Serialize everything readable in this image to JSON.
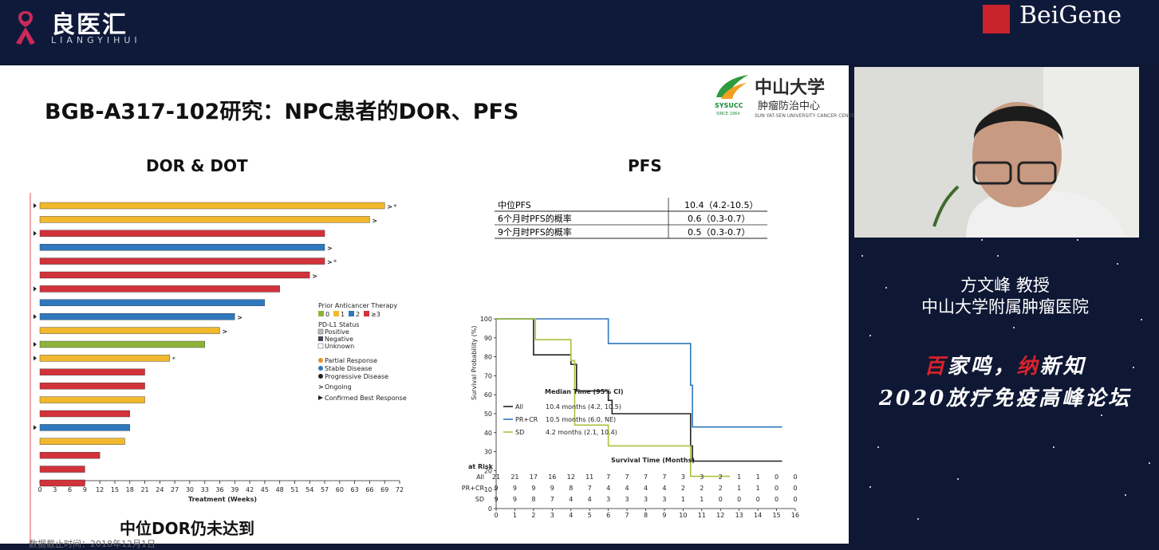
{
  "brand": {
    "cn": "良医汇",
    "en": "LIANGYIHUI",
    "partner": "BeiGene"
  },
  "slide": {
    "title": "BGB-A317-102研究：NPC患者的DOR、PFS",
    "institution": {
      "name_cn": "中山大学",
      "sub_cn": "肿瘤防治中心",
      "name_en": "SUN YAT-SEN UNIVERSITY CANCER CENTER",
      "abbr": "SYSUCC",
      "since": "SINCE 1964"
    },
    "left_heading": "DOR & DOT",
    "right_heading": "PFS",
    "footnote": "中位DOR仍未达到",
    "footnote_small": "数据截止时间：2018年12月1日"
  },
  "pfs_table": {
    "rows": [
      {
        "label": "中位PFS",
        "value": "10.4（4.2-10.5）"
      },
      {
        "label": "6个月时PFS的概率",
        "value": "0.6（0.3-0.7）"
      },
      {
        "label": "9个月时PFS的概率",
        "value": "0.5（0.3-0.7）"
      }
    ]
  },
  "legend_dor": {
    "therapy_title": "Prior Anticancer Therapy",
    "therapy_items": [
      "0",
      "1",
      "2",
      "≥3"
    ],
    "therapy_colors": [
      "#8fb33a",
      "#f2b82e",
      "#2f78bd",
      "#d2323a"
    ],
    "pdl1_title": "PD-L1 Status",
    "pdl1_items": [
      "Positive",
      "Negative",
      "Unknown"
    ],
    "response_items": [
      "Partial Response",
      "Stable Disease",
      "Progressive Disease"
    ],
    "response_colors": [
      "#e8902a",
      "#2f78bd",
      "#222222"
    ],
    "ongoing": "Ongoing",
    "confirmed": "Confirmed Best Response"
  },
  "speaker": {
    "name": "方文峰  教授",
    "affiliation": "中山大学附属肿瘤医院"
  },
  "slogan": {
    "line1_a": "百",
    "line1_b": "家鸣，",
    "line1_c": "纳",
    "line1_d": "新知",
    "line2": "2020放疗免疫高峰论坛"
  },
  "chart_data": [
    {
      "type": "bar",
      "title": "DOR & DOT",
      "xlabel": "Treatment (Weeks)",
      "orientation": "horizontal",
      "xlim": [
        0,
        72
      ],
      "xticks": [
        0,
        3,
        6,
        9,
        12,
        15,
        18,
        21,
        24,
        27,
        30,
        33,
        36,
        39,
        42,
        45,
        48,
        51,
        54,
        57,
        60,
        63,
        66,
        69,
        72
      ],
      "bars": [
        {
          "end": 69,
          "therapy": 1,
          "ongoing": true,
          "star": true,
          "arrow": true
        },
        {
          "end": 66,
          "therapy": 1,
          "ongoing": true,
          "arrow": false
        },
        {
          "end": 57,
          "therapy": 3,
          "ongoing": false,
          "arrow": true
        },
        {
          "end": 57,
          "therapy": 2,
          "ongoing": true,
          "arrow": false
        },
        {
          "end": 57,
          "therapy": 3,
          "ongoing": true,
          "star": true,
          "arrow": false
        },
        {
          "end": 54,
          "therapy": 3,
          "ongoing": true,
          "arrow": false
        },
        {
          "end": 48,
          "therapy": 3,
          "ongoing": false,
          "arrow": true
        },
        {
          "end": 45,
          "therapy": 2,
          "ongoing": false,
          "arrow": false
        },
        {
          "end": 39,
          "therapy": 2,
          "ongoing": true,
          "arrow": true
        },
        {
          "end": 36,
          "therapy": 1,
          "ongoing": true,
          "arrow": false
        },
        {
          "end": 33,
          "therapy": 0,
          "ongoing": false,
          "arrow": true
        },
        {
          "end": 26,
          "therapy": 1,
          "ongoing": false,
          "star": true,
          "arrow": true
        },
        {
          "end": 21,
          "therapy": 3,
          "ongoing": false,
          "arrow": false
        },
        {
          "end": 21,
          "therapy": 3,
          "ongoing": false,
          "arrow": false
        },
        {
          "end": 21,
          "therapy": 1,
          "ongoing": false,
          "arrow": false
        },
        {
          "end": 18,
          "therapy": 3,
          "ongoing": false,
          "arrow": false
        },
        {
          "end": 18,
          "therapy": 2,
          "ongoing": false,
          "arrow": true
        },
        {
          "end": 17,
          "therapy": 1,
          "ongoing": false,
          "arrow": false
        },
        {
          "end": 12,
          "therapy": 3,
          "ongoing": false,
          "arrow": false
        },
        {
          "end": 9,
          "therapy": 3,
          "ongoing": false,
          "arrow": false
        },
        {
          "end": 9,
          "therapy": 3,
          "ongoing": false,
          "arrow": false
        }
      ]
    },
    {
      "type": "line",
      "title": "PFS",
      "xlabel": "Survival Time (Months)",
      "ylabel": "Survival Probability (%)",
      "xlim": [
        0,
        16
      ],
      "ylim": [
        0,
        100
      ],
      "xticks": [
        0,
        1,
        2,
        3,
        4,
        5,
        6,
        7,
        8,
        9,
        10,
        11,
        12,
        13,
        14,
        15,
        16
      ],
      "yticks": [
        0,
        10,
        20,
        30,
        40,
        50,
        60,
        70,
        80,
        90,
        100
      ],
      "legend_title": "Median Time (95% CI)",
      "series": [
        {
          "name": "All",
          "median": "10.4 months (4.2, 10.5)",
          "color": "#222222",
          "steps": [
            [
              0,
              100
            ],
            [
              2,
              100
            ],
            [
              2,
              81
            ],
            [
              4,
              81
            ],
            [
              4,
              76
            ],
            [
              4.3,
              76
            ],
            [
              4.3,
              62
            ],
            [
              6,
              62
            ],
            [
              6,
              57
            ],
            [
              6.2,
              57
            ],
            [
              6.2,
              50
            ],
            [
              10.4,
              50
            ],
            [
              10.4,
              33
            ],
            [
              10.5,
              33
            ],
            [
              10.5,
              25
            ],
            [
              15.3,
              25
            ]
          ]
        },
        {
          "name": "PR+CR",
          "median": "10.5 months (6.0, NE)",
          "color": "#2f78bd",
          "steps": [
            [
              0,
              100
            ],
            [
              6,
              100
            ],
            [
              6,
              87
            ],
            [
              10.4,
              87
            ],
            [
              10.4,
              65
            ],
            [
              10.5,
              65
            ],
            [
              10.5,
              43
            ],
            [
              15.3,
              43
            ]
          ]
        },
        {
          "name": "SD",
          "median": "4.2 months (2.1, 10.4)",
          "color": "#a9c23d",
          "steps": [
            [
              0,
              100
            ],
            [
              2.1,
              100
            ],
            [
              2.1,
              89
            ],
            [
              4,
              89
            ],
            [
              4,
              78
            ],
            [
              4.2,
              78
            ],
            [
              4.2,
              44
            ],
            [
              6,
              44
            ],
            [
              6,
              33
            ],
            [
              10.4,
              33
            ],
            [
              10.4,
              17
            ],
            [
              12.5,
              17
            ]
          ]
        }
      ],
      "at_risk": {
        "label": "at Risk",
        "rows": [
          {
            "name": "All",
            "values": [
              "21",
              "21",
              "17",
              "16",
              "12",
              "11",
              "7",
              "7",
              "7",
              "7",
              "3",
              "3",
              "2",
              "1",
              "1",
              "0",
              "0"
            ]
          },
          {
            "name": "PR+CR",
            "values": [
              "9",
              "9",
              "9",
              "9",
              "8",
              "7",
              "4",
              "4",
              "4",
              "4",
              "2",
              "2",
              "2",
              "1",
              "1",
              "0",
              "0"
            ]
          },
          {
            "name": "SD",
            "values": [
              "9",
              "9",
              "8",
              "7",
              "4",
              "4",
              "3",
              "3",
              "3",
              "3",
              "1",
              "1",
              "0",
              "0",
              "0",
              "0",
              "0"
            ]
          }
        ]
      }
    }
  ]
}
